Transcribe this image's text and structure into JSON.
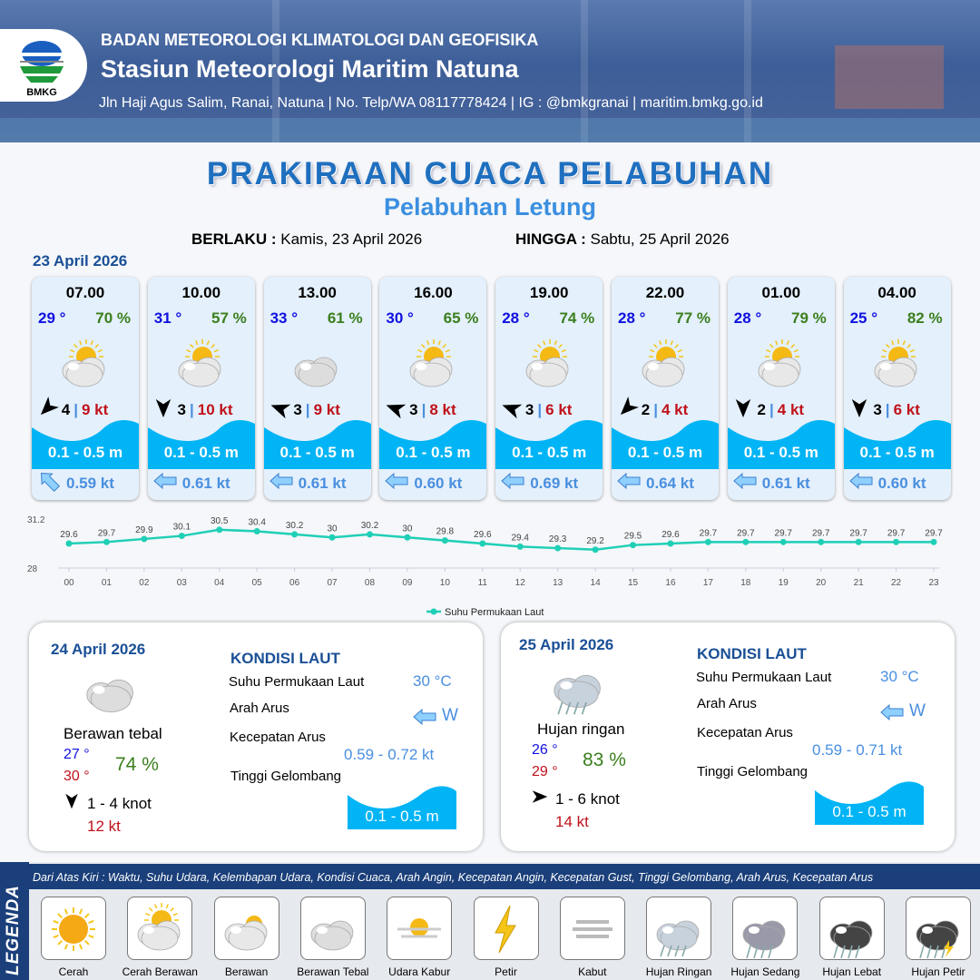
{
  "header": {
    "agency": "BADAN METEOROLOGI KLIMATOLOGI DAN GEOFISIKA",
    "station": "Stasiun Meteorologi Maritim Natuna",
    "contact": "Jln Haji Agus Salim, Ranai, Natuna  | No. Telp/WA 08117778424 | IG : @bmkgranai | maritim.bmkg.go.id",
    "logo_text": "BMKG"
  },
  "title": "PRAKIRAAN CUACA PELABUHAN",
  "subtitle": "Pelabuhan Letung",
  "validity": {
    "from_label": "BERLAKU :",
    "from": "Kamis, 23 April 2026",
    "to_label": "HINGGA :",
    "to": "Sabtu, 25 April 2026"
  },
  "day1": {
    "date": "23 April 2026",
    "units": {
      "temp": " °",
      "rh": " %",
      "kt": " kt"
    },
    "slots": [
      {
        "time": "07.00",
        "temp": "29 °",
        "rh": "70 %",
        "icon": "cerah-berawan",
        "wind_dir_deg": 315,
        "wind": "4",
        "gust": "9 kt",
        "wave": "0.1 - 0.5 m",
        "current_dir_deg": 315,
        "current": "0.59 kt"
      },
      {
        "time": "10.00",
        "temp": "31 °",
        "rh": "57 %",
        "icon": "cerah-berawan",
        "wind_dir_deg": 270,
        "wind": "3",
        "gust": "10 kt",
        "wave": "0.1 - 0.5 m",
        "current_dir_deg": 270,
        "current": "0.61 kt"
      },
      {
        "time": "13.00",
        "temp": "33 °",
        "rh": "61 %",
        "icon": "berawan-tebal",
        "wind_dir_deg": 20,
        "wind": "3",
        "gust": "9 kt",
        "wave": "0.1 - 0.5 m",
        "current_dir_deg": 270,
        "current": "0.61 kt"
      },
      {
        "time": "16.00",
        "temp": "30 °",
        "rh": "65 %",
        "icon": "cerah-berawan",
        "wind_dir_deg": 20,
        "wind": "3",
        "gust": "8 kt",
        "wave": "0.1 - 0.5 m",
        "current_dir_deg": 270,
        "current": "0.60 kt"
      },
      {
        "time": "19.00",
        "temp": "28 °",
        "rh": "74 %",
        "icon": "cerah-berawan",
        "wind_dir_deg": 20,
        "wind": "3",
        "gust": "6 kt",
        "wave": "0.1 - 0.5 m",
        "current_dir_deg": 270,
        "current": "0.69 kt"
      },
      {
        "time": "22.00",
        "temp": "28 °",
        "rh": "77 %",
        "icon": "cerah-berawan",
        "wind_dir_deg": 315,
        "wind": "2",
        "gust": "4 kt",
        "wave": "0.1 - 0.5 m",
        "current_dir_deg": 270,
        "current": "0.64 kt"
      },
      {
        "time": "01.00",
        "temp": "28 °",
        "rh": "79 %",
        "icon": "cerah-berawan",
        "wind_dir_deg": 270,
        "wind": "2",
        "gust": "4 kt",
        "wave": "0.1 - 0.5 m",
        "current_dir_deg": 270,
        "current": "0.61 kt"
      },
      {
        "time": "04.00",
        "temp": "25 °",
        "rh": "82 %",
        "icon": "cerah-berawan",
        "wind_dir_deg": 270,
        "wind": "3",
        "gust": "6 kt",
        "wave": "0.1 - 0.5 m",
        "current_dir_deg": 270,
        "current": "0.60 kt"
      }
    ]
  },
  "chart_data": {
    "type": "line",
    "x": [
      "00",
      "01",
      "02",
      "03",
      "04",
      "05",
      "06",
      "07",
      "08",
      "09",
      "10",
      "11",
      "12",
      "13",
      "14",
      "15",
      "16",
      "17",
      "18",
      "19",
      "20",
      "21",
      "22",
      "23"
    ],
    "series": [
      {
        "name": "Suhu Permukaan Laut",
        "values": [
          29.6,
          29.7,
          29.9,
          30.1,
          30.5,
          30.4,
          30.2,
          30.0,
          30.2,
          30.0,
          29.8,
          29.6,
          29.4,
          29.3,
          29.2,
          29.5,
          29.6,
          29.7,
          29.7,
          29.7,
          29.7,
          29.7,
          29.7,
          29.7
        ]
      }
    ],
    "yticks": [
      "31.2",
      "28"
    ],
    "ylim": [
      28,
      31.2
    ],
    "legend": "bottom",
    "color": "#1fcfb6",
    "grid": false
  },
  "days": [
    {
      "date": "24 April 2026",
      "icon": "berawan-tebal",
      "condition": "Berawan tebal",
      "tmin": "27 °",
      "tmax": "30 °",
      "rh": "74 %",
      "wind_dir_deg": 270,
      "wind": "1 - 4 knot",
      "gust": "12 kt",
      "sea": {
        "title": "KONDISI LAUT",
        "sst_label": "Suhu Permukaan Laut",
        "sst": "30 °C",
        "dir_label": "Arah Arus",
        "dir": "W",
        "speed_label": "Kecepatan Arus",
        "speed": "0.59 - 0.72 kt",
        "wave_label": "Tinggi Gelombang",
        "wave": "0.1 - 0.5 m"
      }
    },
    {
      "date": "25 April 2026",
      "icon": "hujan-ringan",
      "condition": "Hujan ringan",
      "tmin": "26 °",
      "tmax": "29 °",
      "rh": "83 %",
      "wind_dir_deg": 180,
      "wind": "1 - 6 knot",
      "gust": "14 kt",
      "sea": {
        "title": "KONDISI LAUT",
        "sst_label": "Suhu Permukaan Laut",
        "sst": "30 °C",
        "dir_label": "Arah Arus",
        "dir": "W",
        "speed_label": "Kecepatan Arus",
        "speed": "0.59 - 0.71 kt",
        "wave_label": "Tinggi Gelombang",
        "wave": "0.1 - 0.5 m"
      }
    }
  ],
  "legend": {
    "title": "LEGENDA",
    "description": "Dari Atas Kiri : Waktu, Suhu Udara, Kelembapan Udara, Kondisi Cuaca, Arah Angin, Kecepatan Angin, Kecepatan Gust, Tinggi Gelombang, Arah Arus, Kecepatan Arus",
    "items": [
      {
        "label": "Cerah",
        "icon": "cerah"
      },
      {
        "label": "Cerah Berawan",
        "icon": "cerah-berawan"
      },
      {
        "label": "Berawan",
        "icon": "berawan"
      },
      {
        "label": "Berawan Tebal",
        "icon": "berawan-tebal"
      },
      {
        "label": "Udara Kabur",
        "icon": "udara-kabur"
      },
      {
        "label": "Petir",
        "icon": "petir"
      },
      {
        "label": "Kabut",
        "icon": "kabut"
      },
      {
        "label": "Hujan Ringan",
        "icon": "hujan-ringan"
      },
      {
        "label": "Hujan Sedang",
        "icon": "hujan-sedang"
      },
      {
        "label": "Hujan Lebat",
        "icon": "hujan-lebat"
      },
      {
        "label": "Hujan Petir",
        "icon": "hujan-petir"
      }
    ]
  },
  "colors": {
    "header": "#3d5e98",
    "title": "#1f6fbf",
    "temp": "#1010e0",
    "humidity": "#3b7f1e",
    "gust": "#c0121b",
    "wave": "#00b4f5",
    "current": "#4a8fe0"
  }
}
